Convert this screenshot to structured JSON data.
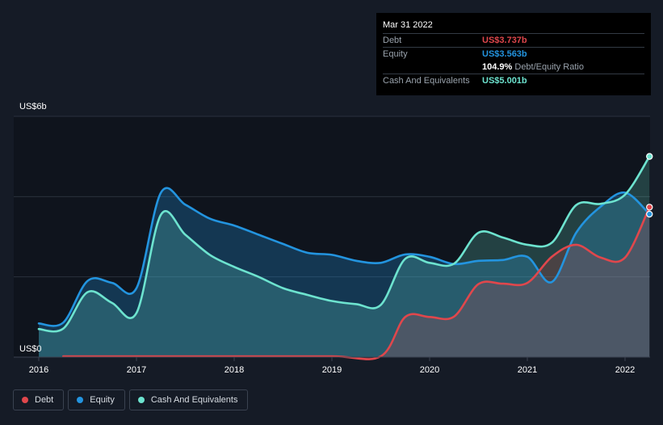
{
  "tooltip": {
    "date": "Mar 31 2022",
    "debt_label": "Debt",
    "debt_value": "US$3.737b",
    "equity_label": "Equity",
    "equity_value": "US$3.563b",
    "ratio_value": "104.9%",
    "ratio_label": "Debt/Equity Ratio",
    "cash_label": "Cash And Equivalents",
    "cash_value": "US$5.001b"
  },
  "colors": {
    "debt": "#e0474c",
    "equity": "#2394df",
    "cash": "#6de3cf",
    "background": "#151b26"
  },
  "legend": [
    {
      "label": "Debt",
      "color": "#e0474c"
    },
    {
      "label": "Equity",
      "color": "#2394df"
    },
    {
      "label": "Cash And Equivalents",
      "color": "#6de3cf"
    }
  ],
  "chart_data": {
    "type": "area",
    "y_top_label": "US$6b",
    "y_bottom_label": "US$0",
    "ylim": [
      0,
      6
    ],
    "xlim": [
      2016,
      2022.25
    ],
    "x_tick_labels": [
      "2016",
      "2017",
      "2018",
      "2019",
      "2020",
      "2021",
      "2022"
    ],
    "grid": "horizontal",
    "legend_position": "bottom-left",
    "series": [
      {
        "name": "Debt",
        "color": "#e0474c",
        "points": [
          [
            2016.25,
            0.02
          ],
          [
            2017.0,
            0.02
          ],
          [
            2018.0,
            0.02
          ],
          [
            2019.0,
            0.02
          ],
          [
            2019.5,
            0.02
          ],
          [
            2019.75,
            1.0
          ],
          [
            2020.0,
            1.0
          ],
          [
            2020.25,
            1.01
          ],
          [
            2020.5,
            1.82
          ],
          [
            2020.75,
            1.83
          ],
          [
            2021.0,
            1.85
          ],
          [
            2021.25,
            2.5
          ],
          [
            2021.5,
            2.8
          ],
          [
            2021.75,
            2.48
          ],
          [
            2022.0,
            2.48
          ],
          [
            2022.25,
            3.737
          ]
        ]
      },
      {
        "name": "Equity",
        "color": "#2394df",
        "points": [
          [
            2016.0,
            0.84
          ],
          [
            2016.25,
            0.86
          ],
          [
            2016.5,
            1.9
          ],
          [
            2016.75,
            1.85
          ],
          [
            2017.0,
            1.72
          ],
          [
            2017.25,
            4.1
          ],
          [
            2017.5,
            3.8
          ],
          [
            2017.75,
            3.45
          ],
          [
            2018.0,
            3.28
          ],
          [
            2018.25,
            3.05
          ],
          [
            2018.5,
            2.82
          ],
          [
            2018.75,
            2.6
          ],
          [
            2019.0,
            2.55
          ],
          [
            2019.25,
            2.4
          ],
          [
            2019.5,
            2.35
          ],
          [
            2019.75,
            2.56
          ],
          [
            2020.0,
            2.5
          ],
          [
            2020.25,
            2.32
          ],
          [
            2020.5,
            2.4
          ],
          [
            2020.75,
            2.42
          ],
          [
            2021.0,
            2.5
          ],
          [
            2021.25,
            1.87
          ],
          [
            2021.5,
            3.1
          ],
          [
            2021.75,
            3.75
          ],
          [
            2022.0,
            4.1
          ],
          [
            2022.25,
            3.563
          ]
        ]
      },
      {
        "name": "Cash And Equivalents",
        "color": "#6de3cf",
        "points": [
          [
            2016.0,
            0.7
          ],
          [
            2016.25,
            0.71
          ],
          [
            2016.5,
            1.62
          ],
          [
            2016.75,
            1.35
          ],
          [
            2017.0,
            1.1
          ],
          [
            2017.25,
            3.55
          ],
          [
            2017.5,
            3.05
          ],
          [
            2017.75,
            2.55
          ],
          [
            2018.0,
            2.25
          ],
          [
            2018.25,
            2.0
          ],
          [
            2018.5,
            1.72
          ],
          [
            2018.75,
            1.55
          ],
          [
            2019.0,
            1.4
          ],
          [
            2019.25,
            1.32
          ],
          [
            2019.5,
            1.3
          ],
          [
            2019.75,
            2.45
          ],
          [
            2020.0,
            2.35
          ],
          [
            2020.25,
            2.33
          ],
          [
            2020.5,
            3.1
          ],
          [
            2020.75,
            2.98
          ],
          [
            2021.0,
            2.8
          ],
          [
            2021.25,
            2.85
          ],
          [
            2021.5,
            3.79
          ],
          [
            2021.75,
            3.82
          ],
          [
            2022.0,
            4.05
          ],
          [
            2022.25,
            5.001
          ]
        ]
      }
    ]
  }
}
